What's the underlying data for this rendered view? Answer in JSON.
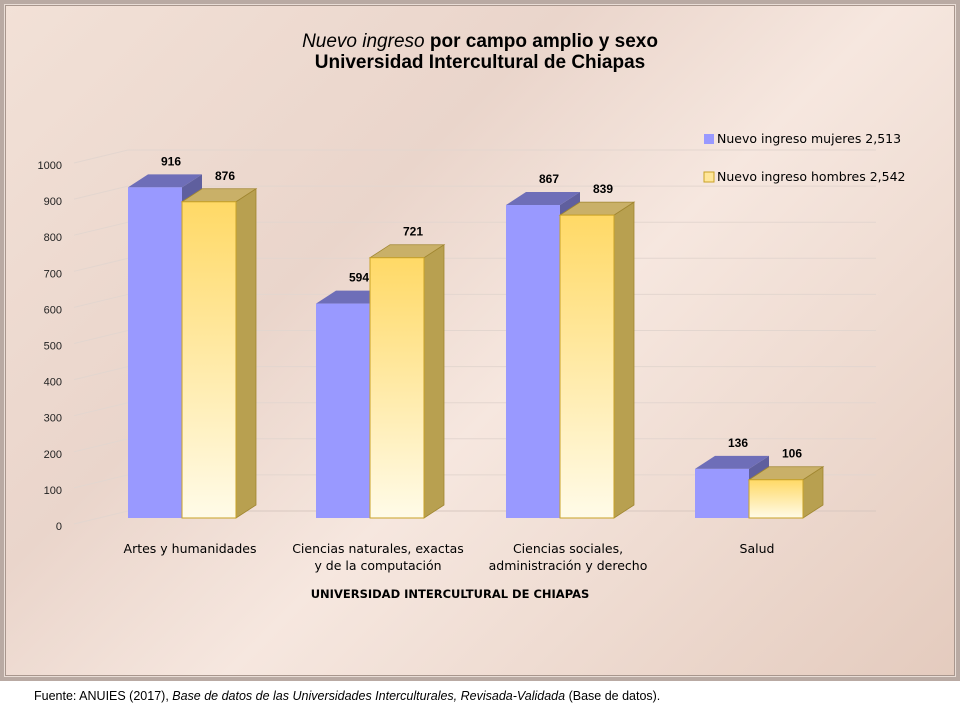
{
  "chart_data": {
    "type": "bar",
    "title_italic": "Nuevo ingreso",
    "title_rest": " por campo amplio y sexo",
    "subtitle": "Universidad Intercultural de Chiapas",
    "xlabel": "UNIVERSIDAD INTERCULTURAL DE CHIAPAS",
    "ylabel": "",
    "ylim": [
      0,
      1000
    ],
    "yticks": [
      0,
      100,
      200,
      300,
      400,
      500,
      600,
      700,
      800,
      900,
      1000
    ],
    "grid": true,
    "legend_position": "top-right",
    "categories": [
      [
        "Artes y humanidades"
      ],
      [
        "Ciencias naturales, exactas",
        "y de la computación"
      ],
      [
        "Ciencias sociales,",
        "administración y derecho"
      ],
      [
        "Salud"
      ]
    ],
    "series": [
      {
        "name": "Nuevo ingreso mujeres  2,513",
        "values": [
          916,
          594,
          867,
          136
        ],
        "color": "#9999ff"
      },
      {
        "name": "Nuevo ingreso hombres 2,542",
        "values": [
          876,
          721,
          839,
          106
        ],
        "color": "#ffe699"
      }
    ]
  },
  "footer": {
    "prefix": "Fuente: ANUIES (2017), ",
    "source_title": "Base de datos de las Universidades  Interculturales, Revisada-Validada",
    "suffix": "  (Base de datos)."
  }
}
